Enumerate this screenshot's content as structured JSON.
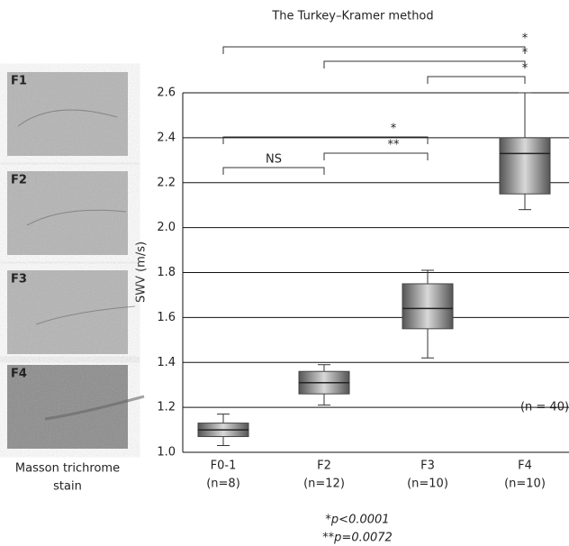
{
  "chart_data": {
    "type": "box",
    "title": "The Turkey–Kramer method",
    "ylabel": "SWV (m/s)",
    "categories": [
      "F0-1",
      "F2",
      "F3",
      "F4"
    ],
    "n_labels": [
      "(n=8)",
      "(n=12)",
      "(n=10)",
      "(n=10)"
    ],
    "boxes": [
      {
        "low": 1.03,
        "q1": 1.07,
        "median": 1.1,
        "q3": 1.13,
        "high": 1.17
      },
      {
        "low": 1.21,
        "q1": 1.26,
        "median": 1.31,
        "q3": 1.36,
        "high": 1.39
      },
      {
        "low": 1.42,
        "q1": 1.55,
        "median": 1.64,
        "q3": 1.75,
        "high": 1.81
      },
      {
        "low": 2.08,
        "q1": 2.15,
        "median": 2.33,
        "q3": 2.4,
        "high": 2.6
      }
    ],
    "ylim": [
      1.0,
      2.6
    ],
    "yticks": [
      {
        "value": 1.0,
        "label": "1.0"
      },
      1.2,
      1.4,
      1.6,
      1.8,
      {
        "value": 2.0,
        "label": "2.0"
      },
      2.2,
      2.4,
      2.6
    ],
    "grid": true,
    "brackets": [
      {
        "from": 0,
        "to": 3,
        "label": "*"
      },
      {
        "from": 1,
        "to": 3,
        "label": "*"
      },
      {
        "from": 2,
        "to": 3,
        "label": "*"
      },
      {
        "from": 0,
        "to": 2,
        "label": "*"
      },
      {
        "from": 1,
        "to": 2,
        "label": "**"
      },
      {
        "from": 0,
        "to": 1,
        "label": "NS"
      }
    ],
    "annotation": "(n = 40)",
    "footnotes": [
      "*p<0.0001",
      "**p=0.0072"
    ]
  },
  "histology": {
    "panels": [
      "F1",
      "F2",
      "F3",
      "F4"
    ],
    "caption": [
      "Masson trichrome",
      "stain"
    ]
  }
}
